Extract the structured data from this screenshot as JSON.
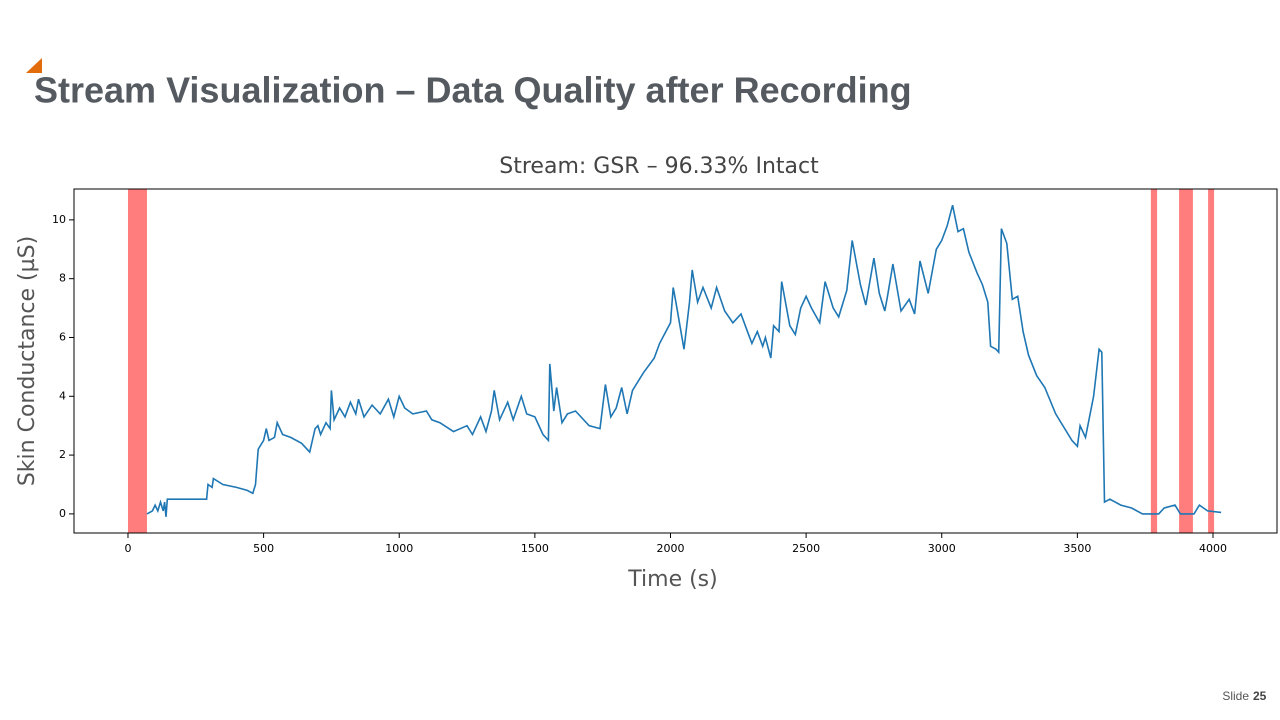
{
  "slide": {
    "title": "Stream Visualization – Data Quality after Recording",
    "label": "Slide",
    "number": 25
  },
  "chart_data": {
    "type": "line",
    "title": "Stream: GSR – 96.33% Intact",
    "x_label": "Time (s)",
    "y_label": "Skin Conductance (µS)",
    "color": "#1f77b4",
    "shade_color": "#ff6666",
    "shaded_regions": [
      [
        0,
        70
      ],
      [
        3771,
        3794
      ],
      [
        3875,
        3926
      ],
      [
        3982,
        4004
      ]
    ],
    "xlim": [
      -199,
      4236
    ],
    "ylim": [
      -0.65,
      11.05
    ],
    "xticks": [
      0,
      500,
      1000,
      1500,
      2000,
      2500,
      3000,
      3500,
      4000
    ],
    "yticks": [
      0,
      2,
      4,
      6,
      8,
      10
    ],
    "x": [
      70,
      90,
      100,
      110,
      120,
      130,
      135,
      140,
      145,
      290,
      295,
      310,
      315,
      350,
      400,
      440,
      460,
      470,
      480,
      500,
      510,
      520,
      540,
      550,
      570,
      600,
      640,
      670,
      690,
      700,
      710,
      730,
      745,
      750,
      760,
      780,
      800,
      820,
      840,
      850,
      870,
      900,
      930,
      960,
      980,
      1000,
      1020,
      1050,
      1100,
      1120,
      1150,
      1200,
      1250,
      1270,
      1300,
      1320,
      1340,
      1350,
      1370,
      1400,
      1420,
      1450,
      1470,
      1500,
      1530,
      1550,
      1555,
      1570,
      1580,
      1600,
      1620,
      1650,
      1700,
      1740,
      1760,
      1780,
      1800,
      1820,
      1840,
      1860,
      1900,
      1940,
      1960,
      2000,
      2010,
      2020,
      2050,
      2070,
      2080,
      2100,
      2120,
      2150,
      2170,
      2200,
      2230,
      2260,
      2280,
      2300,
      2320,
      2340,
      2350,
      2370,
      2380,
      2400,
      2410,
      2440,
      2460,
      2480,
      2500,
      2520,
      2550,
      2570,
      2600,
      2620,
      2650,
      2670,
      2700,
      2720,
      2750,
      2770,
      2790,
      2800,
      2820,
      2850,
      2880,
      2900,
      2920,
      2950,
      2980,
      3000,
      3020,
      3040,
      3060,
      3080,
      3100,
      3130,
      3150,
      3170,
      3180,
      3200,
      3210,
      3220,
      3240,
      3260,
      3280,
      3300,
      3320,
      3350,
      3380,
      3420,
      3480,
      3500,
      3510,
      3530,
      3560,
      3580,
      3590,
      3600,
      3620,
      3660,
      3700,
      3740,
      3800,
      3820,
      3860,
      3880,
      3930,
      3950,
      3980,
      4030
    ],
    "values": [
      0,
      0.1,
      0.3,
      0.1,
      0.4,
      0.1,
      0.4,
      -0.1,
      0.5,
      0.5,
      1.0,
      0.9,
      1.2,
      1.0,
      0.9,
      0.8,
      0.7,
      1.0,
      2.2,
      2.5,
      2.9,
      2.5,
      2.6,
      3.1,
      2.7,
      2.6,
      2.4,
      2.1,
      2.9,
      3.0,
      2.7,
      3.1,
      2.9,
      4.2,
      3.2,
      3.6,
      3.3,
      3.8,
      3.4,
      3.9,
      3.3,
      3.7,
      3.4,
      3.9,
      3.3,
      4.0,
      3.6,
      3.4,
      3.5,
      3.2,
      3.1,
      2.8,
      3.0,
      2.7,
      3.3,
      2.8,
      3.5,
      4.2,
      3.2,
      3.8,
      3.2,
      4.0,
      3.4,
      3.3,
      2.7,
      2.5,
      5.1,
      3.5,
      4.3,
      3.1,
      3.4,
      3.5,
      3.0,
      2.9,
      4.4,
      3.3,
      3.6,
      4.3,
      3.4,
      4.2,
      4.8,
      5.3,
      5.8,
      6.5,
      7.7,
      7.2,
      5.6,
      7.2,
      8.3,
      7.2,
      7.7,
      7.0,
      7.7,
      6.9,
      6.5,
      6.8,
      6.3,
      5.8,
      6.2,
      5.7,
      6.0,
      5.3,
      6.4,
      6.2,
      7.9,
      6.4,
      6.1,
      7.0,
      7.4,
      7.0,
      6.5,
      7.9,
      7.0,
      6.7,
      7.6,
      9.3,
      7.8,
      7.1,
      8.7,
      7.5,
      6.9,
      7.4,
      8.5,
      6.9,
      7.3,
      6.8,
      8.6,
      7.5,
      9.0,
      9.3,
      9.8,
      10.5,
      9.6,
      9.7,
      8.9,
      8.2,
      7.8,
      7.2,
      5.7,
      5.6,
      5.5,
      9.7,
      9.2,
      7.3,
      7.4,
      6.2,
      5.4,
      4.7,
      4.3,
      3.4,
      2.5,
      2.3,
      3.0,
      2.6,
      4.0,
      5.6,
      5.5,
      0.4,
      0.5,
      0.3,
      0.2,
      0.0,
      0.0,
      0.2,
      0.3,
      0.0,
      0.0,
      0.3,
      0.1,
      0.05
    ]
  }
}
